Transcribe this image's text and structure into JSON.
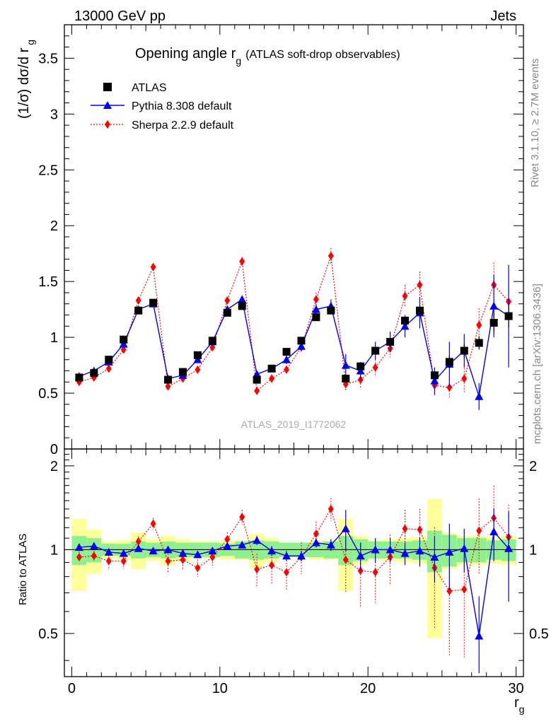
{
  "header": {
    "left": "13000 GeV pp",
    "right": "Jets"
  },
  "side_labels": {
    "rivet": "Rivet 3.1.10, ≥ 2.7M events",
    "mcplots": "mcplots.cern.ch [arXiv:1306.3436]"
  },
  "chart_data": [
    {
      "type": "scatter",
      "title": "Opening angle r",
      "title_sub": "g",
      "title_suffix": "(ATLAS soft-drop observables)",
      "ylabel": "(1/σ) dσ/d r",
      "ylabel_sub": "g",
      "watermark": "ATLAS_2019_I1772062",
      "xlim": [
        -0.5,
        30.5
      ],
      "ylim": [
        0,
        3.8
      ],
      "yticks": [
        0,
        0.5,
        1,
        1.5,
        2,
        2.5,
        3,
        3.5
      ],
      "ytick_labels": [
        "0",
        "0.5",
        "1",
        "1.5",
        "2",
        "2.5",
        "3",
        "3.5"
      ],
      "x": [
        0.5,
        1.5,
        2.5,
        3.5,
        4.5,
        5.5,
        6.5,
        7.5,
        8.5,
        9.5,
        10.5,
        11.5,
        12.5,
        13.5,
        14.5,
        15.5,
        16.5,
        17.5,
        18.5,
        19.5,
        20.5,
        21.5,
        22.5,
        23.5,
        24.5,
        25.5,
        26.5,
        27.5,
        28.5,
        29.5
      ],
      "legend": [
        "ATLAS",
        "Pythia 8.308 default",
        "Sherpa 2.2.9 default"
      ],
      "colors": {
        "atlas": "#000000",
        "pythia": "#0000ee",
        "sherpa": "#ff0000"
      },
      "series": [
        {
          "name": "ATLAS",
          "values": [
            0.64,
            0.68,
            0.8,
            0.98,
            1.24,
            1.31,
            0.62,
            0.69,
            0.84,
            0.97,
            1.22,
            1.28,
            0.62,
            0.72,
            0.87,
            0.97,
            1.18,
            1.24,
            0.63,
            0.74,
            0.88,
            0.96,
            1.15,
            1.24,
            0.66,
            0.78,
            0.88,
            0.95,
            1.13,
            1.19
          ],
          "errors": [
            0.01,
            0.01,
            0.01,
            0.01,
            0.01,
            0.01,
            0.01,
            0.01,
            0.01,
            0.01,
            0.01,
            0.01,
            0.01,
            0.01,
            0.01,
            0.01,
            0.01,
            0.01,
            0.02,
            0.02,
            0.02,
            0.03,
            0.03,
            0.04,
            0.04,
            0.06,
            0.06,
            0.06,
            0.08,
            0.1
          ]
        },
        {
          "name": "Pythia 8.308 default",
          "values": [
            0.65,
            0.7,
            0.78,
            0.94,
            1.25,
            1.3,
            0.63,
            0.66,
            0.8,
            0.96,
            1.25,
            1.34,
            0.67,
            0.72,
            0.8,
            0.92,
            1.25,
            1.28,
            0.75,
            0.7,
            0.88,
            0.96,
            1.1,
            1.22,
            0.61,
            0.76,
            0.88,
            0.47,
            1.28,
            1.19
          ],
          "errors": [
            0.01,
            0.01,
            0.01,
            0.02,
            0.02,
            0.02,
            0.01,
            0.01,
            0.02,
            0.02,
            0.02,
            0.03,
            0.02,
            0.03,
            0.04,
            0.04,
            0.05,
            0.06,
            0.1,
            0.08,
            0.08,
            0.09,
            0.1,
            0.14,
            0.12,
            0.2,
            0.15,
            0.12,
            0.28,
            0.46
          ]
        },
        {
          "name": "Sherpa 2.2.9 default",
          "values": [
            0.6,
            0.64,
            0.72,
            0.89,
            1.33,
            1.63,
            0.56,
            0.63,
            0.71,
            0.91,
            1.33,
            1.68,
            0.52,
            0.63,
            0.71,
            0.91,
            1.34,
            1.73,
            0.58,
            0.62,
            0.73,
            0.9,
            1.37,
            1.47,
            0.57,
            0.55,
            0.63,
            1.11,
            1.47,
            1.32
          ],
          "errors": [
            0.01,
            0.01,
            0.02,
            0.02,
            0.02,
            0.03,
            0.02,
            0.02,
            0.02,
            0.03,
            0.03,
            0.04,
            0.03,
            0.04,
            0.04,
            0.05,
            0.06,
            0.07,
            0.06,
            0.07,
            0.07,
            0.08,
            0.1,
            0.12,
            0.1,
            0.1,
            0.12,
            0.15,
            0.2,
            0.18
          ]
        }
      ]
    },
    {
      "type": "scatter",
      "ylabel": "Ratio to ATLAS",
      "xlabel": "r",
      "xlabel_sub": "g",
      "xlim": [
        -0.5,
        30.5
      ],
      "ylim": [
        0.35,
        2.3
      ],
      "xticks": [
        0,
        10,
        20,
        30
      ],
      "xtick_labels": [
        "0",
        "10",
        "20",
        "30"
      ],
      "yticks": [
        0.5,
        1,
        2
      ],
      "ytick_labels": [
        "0.5",
        "1",
        "2"
      ],
      "band_inner": [
        0.12,
        0.1,
        0.05,
        0.05,
        0.07,
        0.06,
        0.07,
        0.06,
        0.06,
        0.06,
        0.05,
        0.07,
        0.08,
        0.07,
        0.06,
        0.06,
        0.06,
        0.07,
        0.12,
        0.09,
        0.07,
        0.07,
        0.07,
        0.08,
        0.17,
        0.13,
        0.1,
        0.1,
        0.08,
        0.09
      ],
      "band_outer": [
        0.29,
        0.18,
        0.07,
        0.08,
        0.15,
        0.09,
        0.12,
        0.09,
        0.07,
        0.07,
        0.08,
        0.08,
        0.14,
        0.1,
        0.06,
        0.06,
        0.08,
        0.08,
        0.29,
        0.12,
        0.08,
        0.09,
        0.1,
        0.11,
        0.52,
        0.15,
        0.12,
        0.12,
        0.11,
        0.12
      ],
      "series": [
        {
          "name": "Pythia 8.308 default",
          "values": [
            1.02,
            1.03,
            0.98,
            0.97,
            1.01,
            0.99,
            1.0,
            0.97,
            0.96,
            0.99,
            1.03,
            1.04,
            1.08,
            0.99,
            0.95,
            0.95,
            1.06,
            1.04,
            1.19,
            0.95,
            1.0,
            1.0,
            0.97,
            0.99,
            0.94,
            0.98,
            1.01,
            0.49,
            1.16,
            1.01
          ],
          "errors": [
            0.01,
            0.01,
            0.02,
            0.02,
            0.02,
            0.02,
            0.02,
            0.02,
            0.02,
            0.02,
            0.02,
            0.02,
            0.04,
            0.04,
            0.04,
            0.04,
            0.04,
            0.05,
            0.2,
            0.11,
            0.1,
            0.1,
            0.09,
            0.12,
            0.18,
            0.26,
            0.18,
            0.19,
            0.25,
            0.36
          ]
        },
        {
          "name": "Sherpa 2.2.9 default",
          "values": [
            0.94,
            0.95,
            0.91,
            0.91,
            1.07,
            1.24,
            0.91,
            0.92,
            0.86,
            0.94,
            1.09,
            1.31,
            0.85,
            0.88,
            0.83,
            0.94,
            1.14,
            1.4,
            0.92,
            0.84,
            0.83,
            0.94,
            1.19,
            1.18,
            0.86,
            0.71,
            0.72,
            1.17,
            1.3,
            1.11
          ]
        }
      ]
    }
  ]
}
